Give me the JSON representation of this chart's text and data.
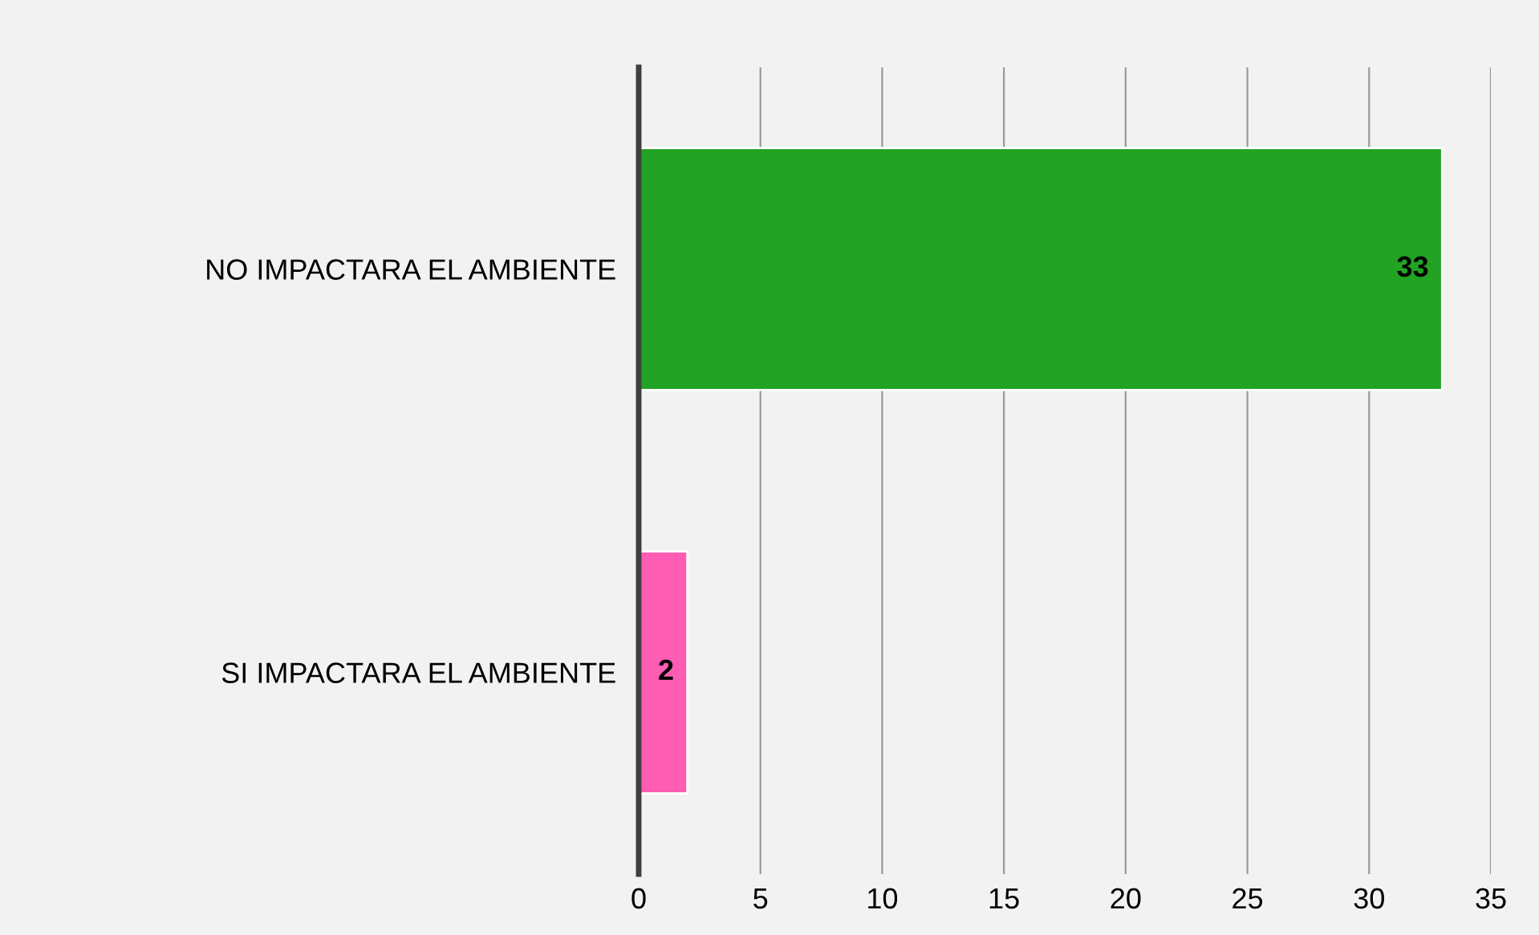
{
  "chart_data": {
    "type": "bar",
    "orientation": "horizontal",
    "categories": [
      "NO IMPACTARA EL AMBIENTE",
      "SI IMPACTARA EL AMBIENTE"
    ],
    "values": [
      33,
      2
    ],
    "colors": [
      "#22a323",
      "#ff5cb4"
    ],
    "xlim": [
      0,
      35
    ],
    "xticks": [
      0,
      5,
      10,
      15,
      20,
      25,
      30,
      35
    ],
    "grid": "x",
    "data_labels": true
  }
}
